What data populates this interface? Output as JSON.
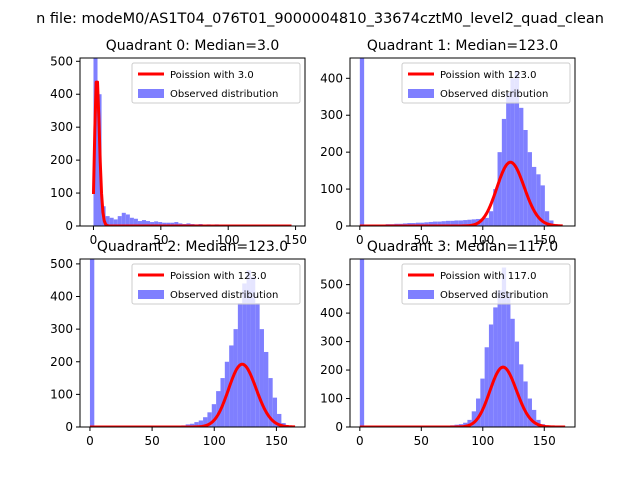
{
  "figure": {
    "suptitle": "n file: modeM0/AS1T04_076T01_9000004810_33674cztM0_level2_quad_clean"
  },
  "colors": {
    "hist": "#7f7fff",
    "fit": "#ff0000",
    "axes": "#000000",
    "background": "#ffffff"
  },
  "chart_data": [
    {
      "type": "bar",
      "title": "Quadrant 0: Median=3.0",
      "xlim": [
        -10,
        157
      ],
      "ylim": [
        0,
        510
      ],
      "xticks": [
        0,
        50,
        100,
        150
      ],
      "yticks": [
        0,
        100,
        200,
        300,
        400,
        500
      ],
      "bin_start": 0,
      "bin_width": 3,
      "hist_values": [
        510,
        400,
        60,
        30,
        25,
        20,
        30,
        40,
        35,
        25,
        22,
        15,
        18,
        15,
        12,
        14,
        12,
        10,
        10,
        10,
        12,
        8,
        6,
        8,
        6,
        5,
        6,
        4,
        5,
        3,
        5,
        4,
        2,
        3,
        3,
        2,
        2,
        3,
        2,
        2,
        1,
        2,
        1,
        1,
        1,
        1,
        1,
        1,
        1,
        1
      ],
      "fit_mu": 3.0,
      "fit_scale": 1950,
      "fit_range": [
        0,
        147
      ],
      "legend": [
        {
          "kind": "line",
          "label": "Poission with 3.0"
        },
        {
          "kind": "patch",
          "label": "Observed distribution"
        }
      ]
    },
    {
      "type": "bar",
      "title": "Quadrant 1: Median=123.0",
      "xlim": [
        -8,
        175
      ],
      "ylim": [
        0,
        455
      ],
      "xticks": [
        0,
        50,
        100,
        150
      ],
      "yticks": [
        0,
        100,
        200,
        300,
        400
      ],
      "bin_start": 0,
      "bin_width": 3.5,
      "hist_values": [
        455,
        1,
        2,
        3,
        3,
        4,
        5,
        5,
        6,
        6,
        7,
        8,
        8,
        9,
        9,
        10,
        11,
        12,
        12,
        13,
        14,
        14,
        15,
        15,
        16,
        17,
        18,
        19,
        20,
        22,
        40,
        100,
        200,
        290,
        360,
        400,
        420,
        320,
        260,
        200,
        160,
        140,
        110,
        40,
        15,
        5,
        2
      ],
      "fit_mu": 123.0,
      "fit_scale": 4800,
      "fit_range": [
        0,
        165
      ],
      "legend": [
        {
          "kind": "line",
          "label": "Poission with 123.0"
        },
        {
          "kind": "patch",
          "label": "Observed distribution"
        }
      ]
    },
    {
      "type": "bar",
      "title": "Quadrant 2: Median=123.0",
      "xlim": [
        -8,
        173
      ],
      "ylim": [
        0,
        515
      ],
      "xticks": [
        0,
        50,
        100,
        150
      ],
      "yticks": [
        0,
        100,
        200,
        300,
        400,
        500
      ],
      "bin_start": 0,
      "bin_width": 3.5,
      "hist_values": [
        515,
        1,
        0,
        1,
        0,
        1,
        0,
        1,
        0,
        1,
        1,
        1,
        1,
        1,
        2,
        2,
        2,
        3,
        3,
        4,
        4,
        5,
        8,
        10,
        15,
        20,
        30,
        45,
        70,
        110,
        150,
        200,
        250,
        300,
        380,
        440,
        480,
        460,
        380,
        300,
        230,
        150,
        90,
        40,
        12,
        3,
        1
      ],
      "fit_mu": 123.0,
      "fit_scale": 5350,
      "fit_range": [
        0,
        165
      ],
      "legend": [
        {
          "kind": "line",
          "label": "Poission with 123.0"
        },
        {
          "kind": "patch",
          "label": "Observed distribution"
        }
      ]
    },
    {
      "type": "bar",
      "title": "Quadrant 3: Median=117.0",
      "xlim": [
        -8,
        175
      ],
      "ylim": [
        0,
        590
      ],
      "xticks": [
        0,
        50,
        100,
        150
      ],
      "yticks": [
        0,
        100,
        200,
        300,
        400,
        500
      ],
      "bin_start": 0,
      "bin_width": 3.5,
      "hist_values": [
        590,
        1,
        0,
        1,
        0,
        1,
        0,
        1,
        0,
        1,
        1,
        1,
        1,
        1,
        2,
        2,
        2,
        3,
        3,
        4,
        5,
        6,
        8,
        10,
        15,
        25,
        55,
        100,
        170,
        280,
        360,
        420,
        480,
        560,
        470,
        380,
        300,
        220,
        160,
        100,
        60,
        25,
        10,
        4,
        1,
        1,
        1
      ],
      "fit_mu": 117.0,
      "fit_scale": 5700,
      "fit_range": [
        0,
        167
      ],
      "legend": [
        {
          "kind": "line",
          "label": "Poission with 117.0"
        },
        {
          "kind": "patch",
          "label": "Observed distribution"
        }
      ]
    }
  ]
}
